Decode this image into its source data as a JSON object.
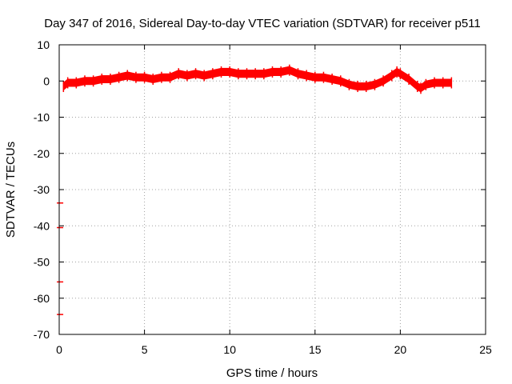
{
  "chart_data": {
    "type": "scatter",
    "title": "Day 347 of 2016, Sidereal Day-to-day VTEC variation (SDTVAR) for receiver p511",
    "xlabel": "GPS time / hours",
    "ylabel": "SDTVAR / TECUs",
    "xlim": [
      0,
      25
    ],
    "ylim": [
      -70,
      10
    ],
    "x_ticks": [
      0,
      5,
      10,
      15,
      20,
      25
    ],
    "y_ticks": [
      10,
      0,
      -10,
      -20,
      -30,
      -40,
      -50,
      -60,
      -70
    ],
    "grid": true,
    "series": [
      {
        "name": "SDTVAR",
        "color": "#ff0000",
        "band_half_width": 1.0,
        "x": [
          0.25,
          0.5,
          1.0,
          1.5,
          2.0,
          2.5,
          3.0,
          3.5,
          4.0,
          4.5,
          5.0,
          5.5,
          6.0,
          6.5,
          7.0,
          7.5,
          8.0,
          8.5,
          9.0,
          9.5,
          10.0,
          10.5,
          11.0,
          11.5,
          12.0,
          12.5,
          13.0,
          13.5,
          14.0,
          14.5,
          15.0,
          15.5,
          16.0,
          16.5,
          17.0,
          17.5,
          18.0,
          18.5,
          19.0,
          19.5,
          19.8,
          20.0,
          20.5,
          21.0,
          21.2,
          21.5,
          22.0,
          22.5,
          23.0
        ],
        "values": [
          -1.5,
          -0.5,
          -0.5,
          0.0,
          0.0,
          0.5,
          0.5,
          1.0,
          1.5,
          1.0,
          1.0,
          0.5,
          1.0,
          1.0,
          2.0,
          1.5,
          2.0,
          1.5,
          2.0,
          2.5,
          2.5,
          2.0,
          2.0,
          2.0,
          2.0,
          2.5,
          2.5,
          3.0,
          2.0,
          1.5,
          1.0,
          1.0,
          0.5,
          0.0,
          -1.0,
          -1.5,
          -1.5,
          -1.0,
          0.0,
          1.5,
          2.5,
          2.0,
          0.5,
          -1.5,
          -2.0,
          -1.0,
          -0.5,
          -0.5,
          -0.5
        ]
      },
      {
        "name": "outliers",
        "color": "#ff0000",
        "x": [
          0.05,
          0.05,
          0.05,
          0.05
        ],
        "values": [
          -33.7,
          -40.5,
          -55.5,
          -64.5
        ]
      }
    ]
  }
}
